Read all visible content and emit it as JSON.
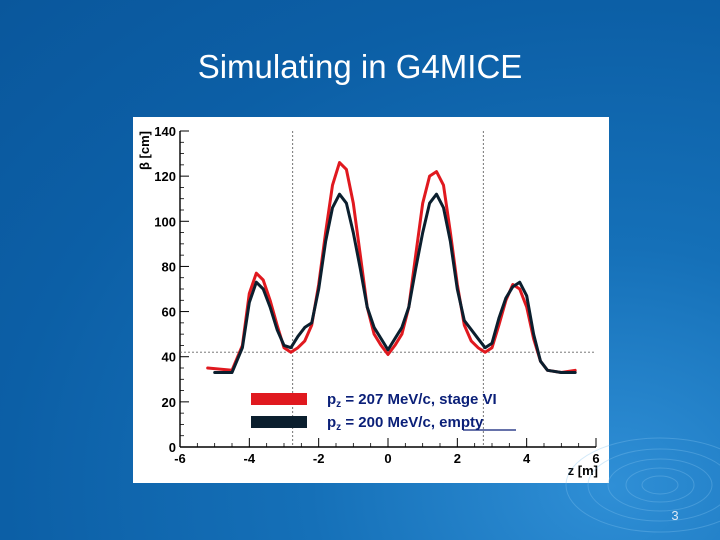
{
  "slide": {
    "title": "Simulating in G4MICE",
    "page_number": "3"
  },
  "colors": {
    "background": "#0c5fa6",
    "red_series": "#e0191f",
    "black_series": "#0b1f2e"
  },
  "chart_data": {
    "type": "line",
    "title": "",
    "xlabel": "z [m]",
    "ylabel": "β [cm]",
    "xlim": [
      -6,
      6
    ],
    "ylim": [
      0,
      140
    ],
    "x_ticks": [
      "-6",
      "-4",
      "-2",
      "0",
      "2",
      "4",
      "6"
    ],
    "y_ticks": [
      "0",
      "20",
      "40",
      "60",
      "80",
      "100",
      "120",
      "140"
    ],
    "reference_lines": {
      "horizontal_y": 42,
      "vertical_x": [
        -2.75,
        2.75
      ]
    },
    "legend": {
      "placement": "bottom-center",
      "entries": [
        {
          "label_base": "p",
          "label_sub": "z",
          "label_rest": " = 207 MeV/c, stage VI",
          "color": "#e0191f"
        },
        {
          "label_base": "p",
          "label_sub": "z",
          "label_rest": " = 200 MeV/c, empty",
          "color": "#0b1f2e"
        }
      ]
    },
    "series": [
      {
        "color": "#e0191f",
        "x": [
          -5.2,
          -4.5,
          -4.2,
          -4.0,
          -3.8,
          -3.6,
          -3.4,
          -3.2,
          -3.0,
          -2.8,
          -2.6,
          -2.4,
          -2.2,
          -2.0,
          -1.8,
          -1.6,
          -1.4,
          -1.2,
          -1.0,
          -0.8,
          -0.6,
          -0.4,
          -0.2,
          0.0,
          0.2,
          0.4,
          0.6,
          0.8,
          1.0,
          1.2,
          1.4,
          1.6,
          1.8,
          2.0,
          2.2,
          2.4,
          2.6,
          2.8,
          3.0,
          3.2,
          3.4,
          3.6,
          3.8,
          4.0,
          4.2,
          4.4,
          4.6,
          5.0,
          5.4
        ],
        "y": [
          35,
          34,
          45,
          68,
          77,
          74,
          65,
          54,
          44,
          42,
          44,
          47,
          54,
          72,
          95,
          116,
          126,
          123,
          108,
          85,
          62,
          50,
          45,
          41,
          45,
          50,
          62,
          85,
          108,
          120,
          122,
          116,
          95,
          72,
          54,
          47,
          44,
          42,
          44,
          54,
          65,
          72,
          70,
          62,
          48,
          38,
          34,
          33,
          34
        ]
      },
      {
        "color": "#0b1f2e",
        "x": [
          -5.0,
          -4.5,
          -4.2,
          -4.0,
          -3.8,
          -3.6,
          -3.4,
          -3.2,
          -3.0,
          -2.8,
          -2.6,
          -2.4,
          -2.2,
          -2.0,
          -1.8,
          -1.6,
          -1.4,
          -1.2,
          -1.0,
          -0.8,
          -0.6,
          -0.4,
          -0.2,
          0.0,
          0.2,
          0.4,
          0.6,
          0.8,
          1.0,
          1.2,
          1.4,
          1.6,
          1.8,
          2.0,
          2.2,
          2.4,
          2.6,
          2.8,
          3.0,
          3.2,
          3.4,
          3.6,
          3.8,
          4.0,
          4.2,
          4.4,
          4.6,
          5.0,
          5.4
        ],
        "y": [
          33,
          33,
          44,
          64,
          73,
          70,
          62,
          52,
          45,
          44,
          49,
          53,
          55,
          70,
          91,
          106,
          112,
          108,
          95,
          79,
          62,
          53,
          48,
          43,
          48,
          53,
          62,
          79,
          95,
          108,
          112,
          106,
          91,
          70,
          56,
          52,
          48,
          44,
          46,
          57,
          66,
          71,
          73,
          67,
          50,
          38,
          34,
          33,
          33
        ]
      }
    ]
  }
}
